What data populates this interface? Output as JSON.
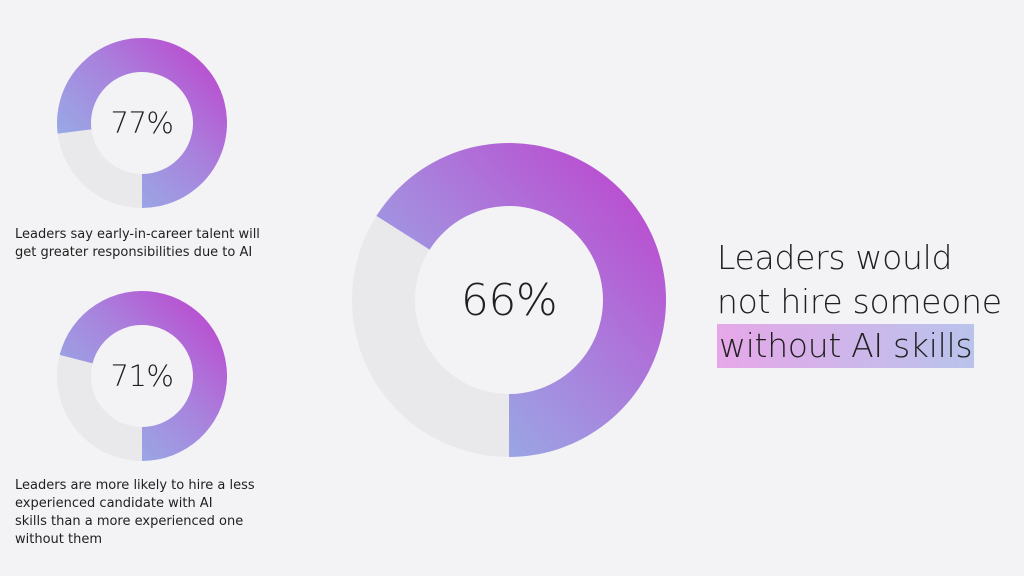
{
  "chart_data": [
    {
      "type": "pie",
      "subtype": "donut",
      "center_label": "77%",
      "values": [
        77,
        23
      ],
      "caption_lines": [
        "Leaders say early-in-career talent will",
        "get greater responsibilities due to AI"
      ]
    },
    {
      "type": "pie",
      "subtype": "donut",
      "center_label": "71%",
      "values": [
        71,
        29
      ],
      "caption_lines": [
        "Leaders are more likely to hire a less",
        "experienced candidate with AI",
        "skills than a more experienced one",
        "without them"
      ]
    },
    {
      "type": "pie",
      "subtype": "donut",
      "center_label": "66%",
      "values": [
        66,
        34
      ],
      "headline_lines": [
        "Leaders would",
        "not hire someone",
        "without AI skills"
      ]
    }
  ],
  "colors": {
    "arc_start": "#c03ccc",
    "arc_end": "#8ec3ea",
    "remainder": "#e9e9eb",
    "background": "#f3f3f5"
  }
}
